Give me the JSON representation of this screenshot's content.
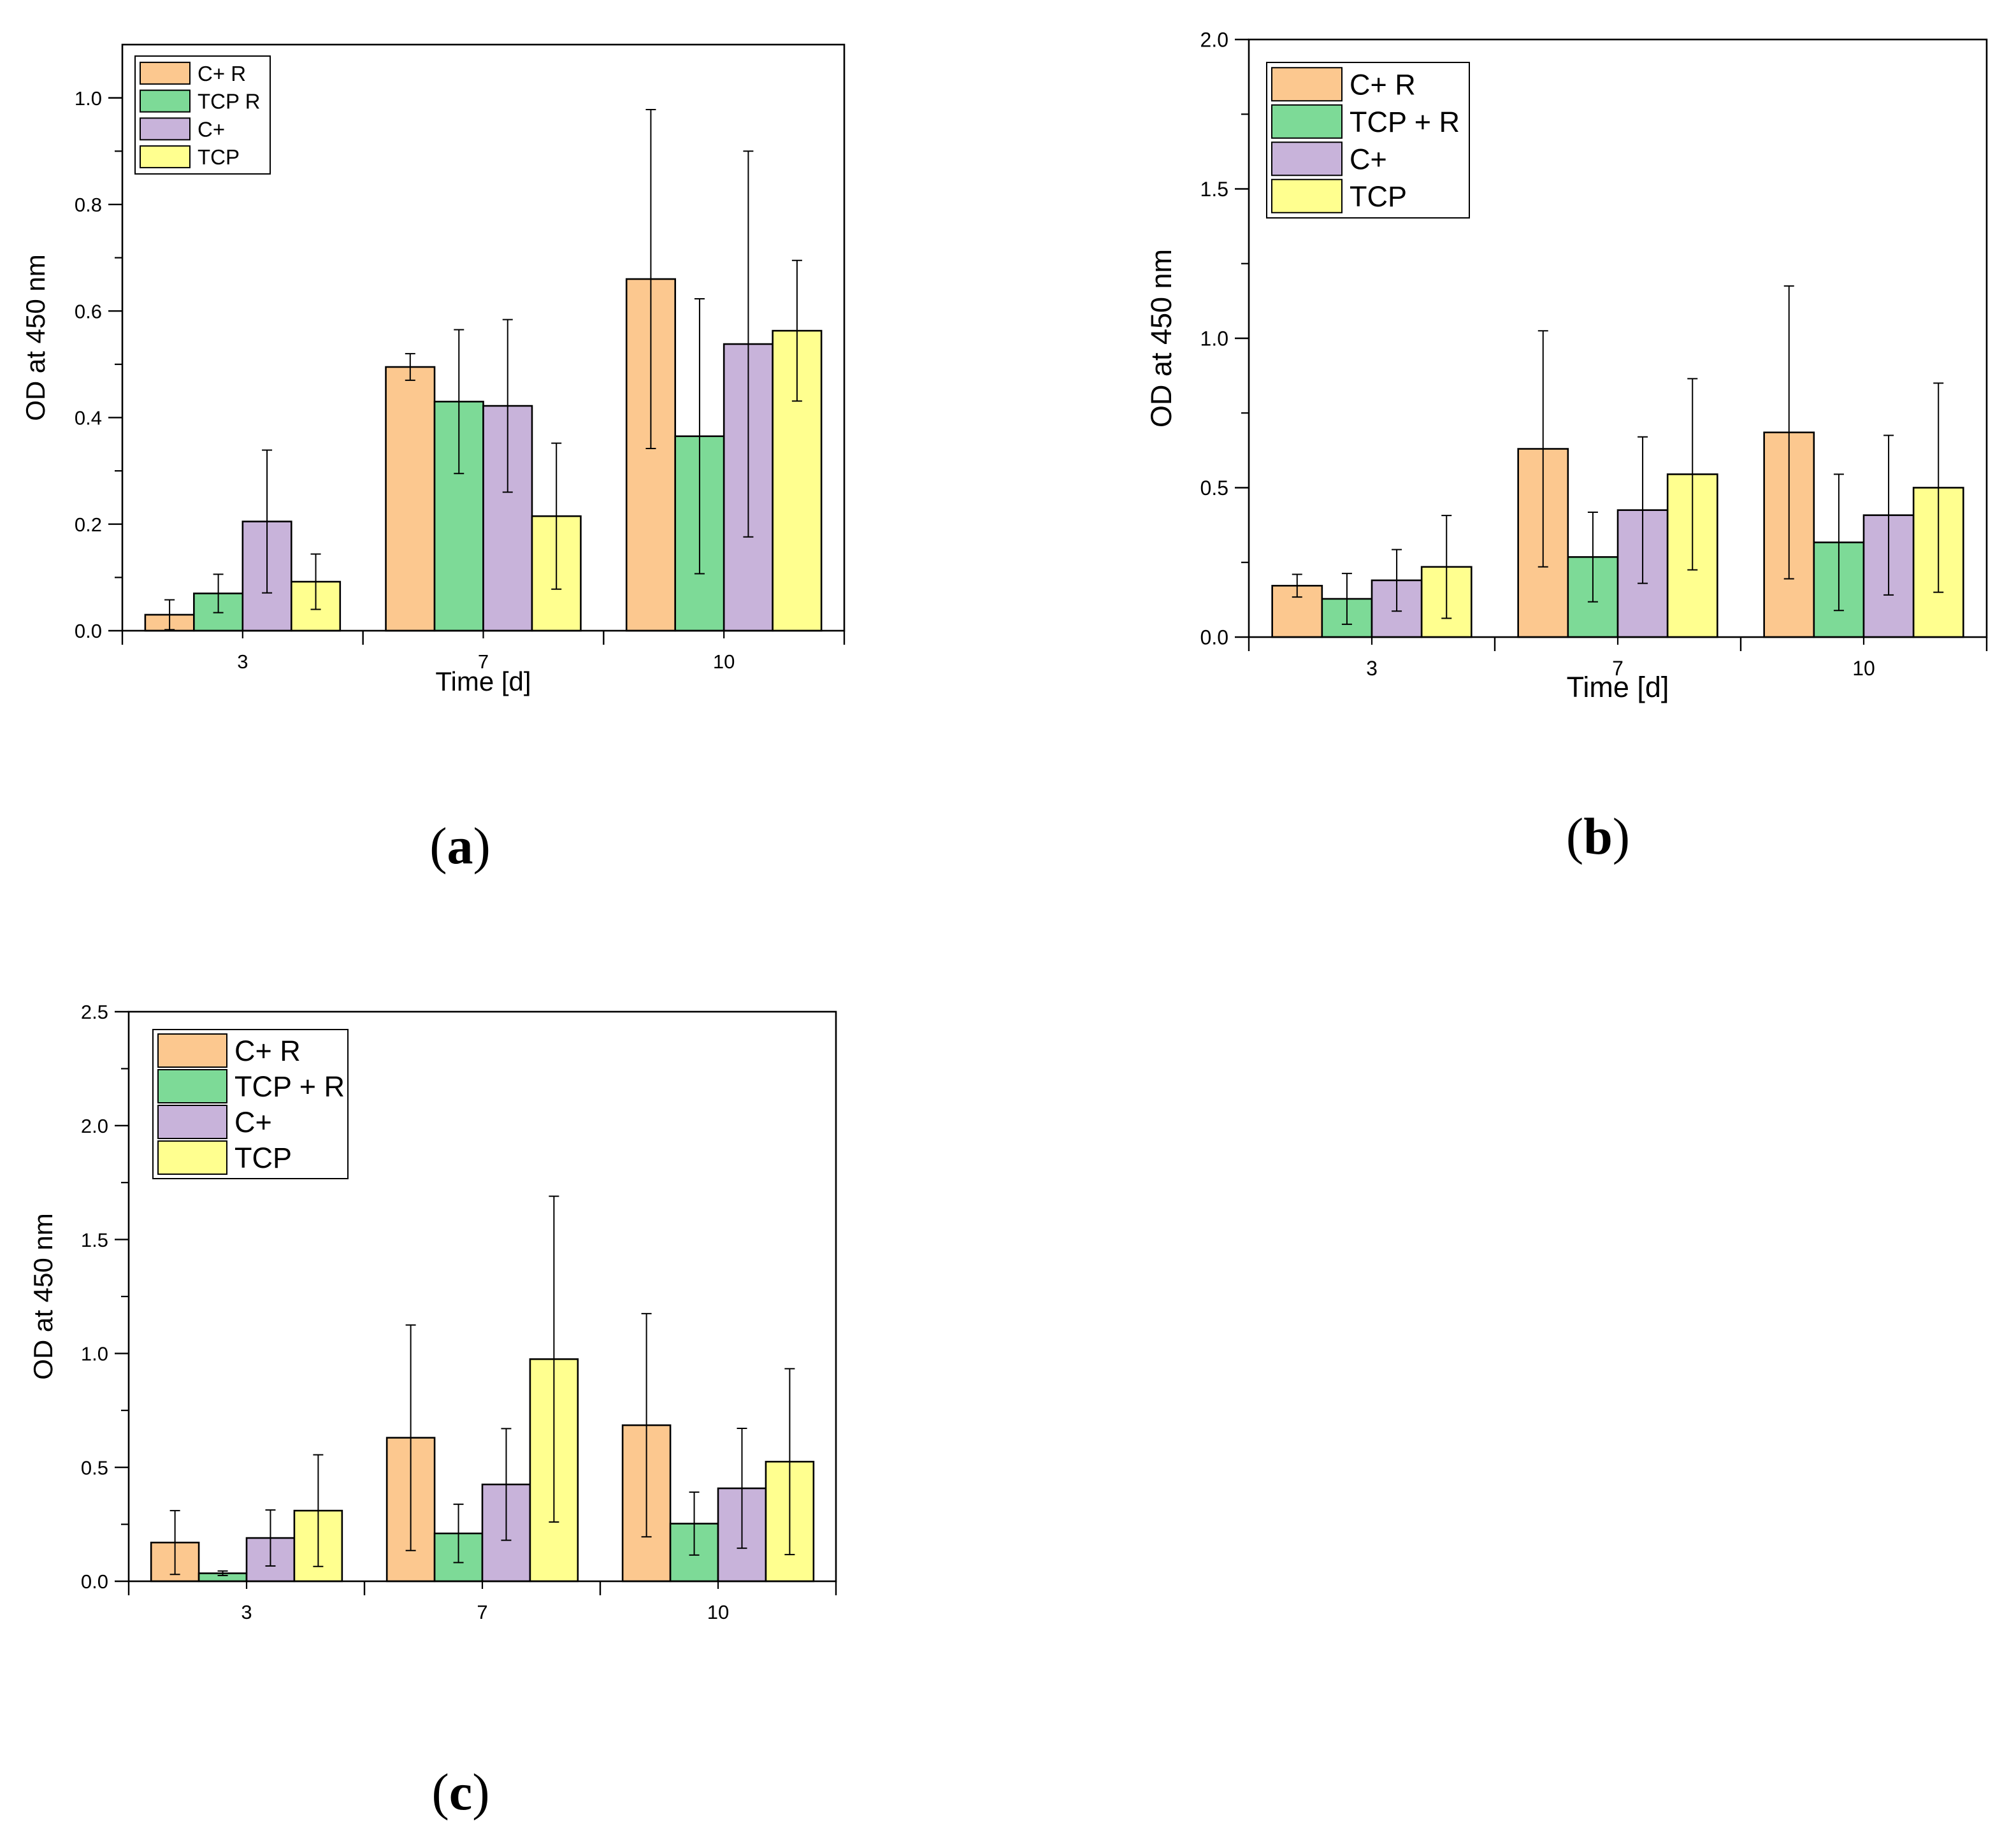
{
  "figure": {
    "title": ""
  },
  "colors": {
    "C+ R": "#FCC88F",
    "TCP + R": "#7DDA97",
    "C+": "#C8B3DA",
    "TCP": "#FFFF8F",
    "axis": "#000000"
  },
  "chart_data": [
    {
      "type": "bar",
      "panel": "(a)",
      "panel_paren_open": "(",
      "panel_letter": "a",
      "panel_paren_close": ")",
      "xlabel": "Time [d]",
      "ylabel": "OD at 450 nm",
      "ylim": [
        0,
        1.1
      ],
      "yticks": [
        "0.0",
        "0.2",
        "0.4",
        "0.6",
        "0.8",
        "1.0"
      ],
      "ytick_values": [
        0,
        0.2,
        0.4,
        0.6,
        0.8,
        1.0
      ],
      "yminor_step": 0.1,
      "categories": [
        "3",
        "7",
        "10"
      ],
      "legend_position": "top-left",
      "series": [
        {
          "name": "C+ R",
          "color_key": "C+ R",
          "values": [
            0.03,
            0.495,
            0.66
          ],
          "errors": [
            0.028,
            0.025,
            0.318
          ]
        },
        {
          "name": "TCP R",
          "color_key": "TCP + R",
          "values": [
            0.07,
            0.43,
            0.365
          ],
          "errors": [
            0.036,
            0.135,
            0.258
          ]
        },
        {
          "name": "C+",
          "color_key": "C+",
          "values": [
            0.205,
            0.422,
            0.538
          ],
          "errors": [
            0.134,
            0.162,
            0.362
          ]
        },
        {
          "name": "TCP",
          "color_key": "TCP",
          "values": [
            0.092,
            0.215,
            0.563
          ],
          "errors": [
            0.052,
            0.137,
            0.132
          ]
        }
      ]
    },
    {
      "type": "bar",
      "panel": "(b)",
      "panel_paren_open": "(",
      "panel_letter": "b",
      "panel_paren_close": ")",
      "xlabel": "Time [d]",
      "ylabel": "OD at 450 nm",
      "ylim": [
        0,
        2.0
      ],
      "yticks": [
        "0.0",
        "0.5",
        "1.0",
        "1.5",
        "2.0"
      ],
      "ytick_values": [
        0,
        0.5,
        1.0,
        1.5,
        2.0
      ],
      "yminor_step": 0.25,
      "categories": [
        "3",
        "7",
        "10"
      ],
      "legend_position": "top-left",
      "series": [
        {
          "name": "C+ R",
          "color_key": "C+ R",
          "values": [
            0.172,
            0.63,
            0.685
          ],
          "errors": [
            0.038,
            0.395,
            0.49
          ]
        },
        {
          "name": "TCP + R",
          "color_key": "TCP + R",
          "values": [
            0.128,
            0.268,
            0.317
          ],
          "errors": [
            0.085,
            0.15,
            0.228
          ]
        },
        {
          "name": "C+",
          "color_key": "C+",
          "values": [
            0.19,
            0.425,
            0.408
          ],
          "errors": [
            0.103,
            0.245,
            0.267
          ]
        },
        {
          "name": "TCP",
          "color_key": "TCP",
          "values": [
            0.235,
            0.545,
            0.5
          ],
          "errors": [
            0.172,
            0.32,
            0.35
          ]
        }
      ]
    },
    {
      "type": "bar",
      "panel": "(c)",
      "panel_paren_open": "(",
      "panel_letter": "c",
      "panel_paren_close": ")",
      "xlabel": "",
      "ylabel": "OD at 450 nm",
      "ylim": [
        0,
        2.5
      ],
      "yticks": [
        "0.0",
        "0.5",
        "1.0",
        "1.5",
        "2.0",
        "2.5"
      ],
      "ytick_values": [
        0,
        0.5,
        1.0,
        1.5,
        2.0,
        2.5
      ],
      "yminor_step": 0.25,
      "categories": [
        "3",
        "7",
        "10"
      ],
      "legend_position": "top-left",
      "series": [
        {
          "name": "C+ R",
          "color_key": "C+ R",
          "values": [
            0.17,
            0.63,
            0.685
          ],
          "errors": [
            0.14,
            0.495,
            0.49
          ]
        },
        {
          "name": "TCP + R",
          "color_key": "TCP + R",
          "values": [
            0.035,
            0.21,
            0.253
          ],
          "errors": [
            0.01,
            0.128,
            0.138
          ]
        },
        {
          "name": "C+",
          "color_key": "C+",
          "values": [
            0.19,
            0.425,
            0.408
          ],
          "errors": [
            0.123,
            0.245,
            0.263
          ]
        },
        {
          "name": "TCP",
          "color_key": "TCP",
          "values": [
            0.31,
            0.975,
            0.525
          ],
          "errors": [
            0.245,
            0.715,
            0.408
          ]
        }
      ]
    }
  ]
}
